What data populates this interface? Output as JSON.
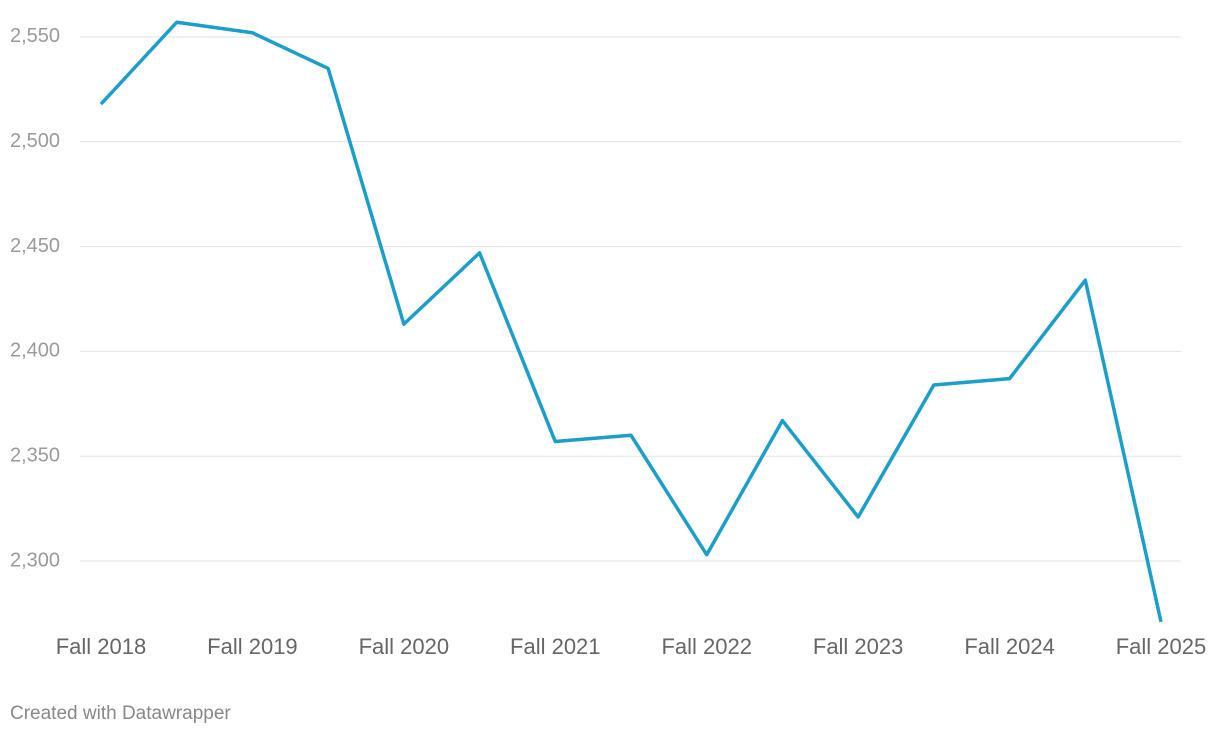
{
  "chart_data": {
    "type": "line",
    "categories": [
      "Fall 2018",
      null,
      "Fall 2019",
      null,
      "Fall 2020",
      null,
      "Fall 2021",
      null,
      "Fall 2022",
      null,
      "Fall 2023",
      null,
      "Fall 2024",
      null,
      "Fall 2025"
    ],
    "series": [
      {
        "color": "#1c9ecb",
        "values": [
          2518,
          2557,
          2552,
          2535,
          2413,
          2447,
          2357,
          2360,
          2303,
          2367,
          2321,
          2384,
          2387,
          2434,
          2271
        ]
      }
    ],
    "ylim": [
      2265,
      2560
    ],
    "yticks": [
      {
        "value": 2300,
        "label": "2,300"
      },
      {
        "value": 2350,
        "label": "2,350"
      },
      {
        "value": 2400,
        "label": "2,400"
      },
      {
        "value": 2450,
        "label": "2,450"
      },
      {
        "value": 2500,
        "label": "2,500"
      },
      {
        "value": 2550,
        "label": "2,550"
      }
    ],
    "grid": true,
    "credit": "Created with Datawrapper"
  }
}
